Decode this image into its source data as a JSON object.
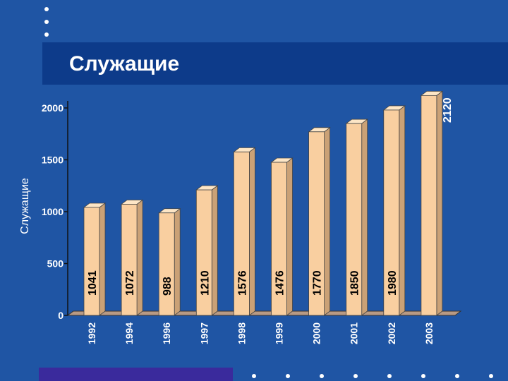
{
  "slide": {
    "title": "Служащие",
    "colors": {
      "background": "#1f55a4",
      "title_band": "#0d3b8a",
      "bar_front": "#f9cfa0",
      "bar_top": "#fde6c6",
      "bar_side": "#caa176",
      "floor": "#b89a84",
      "bottom_bar": "#3a2a9c"
    }
  },
  "chart_data": {
    "type": "bar",
    "title": "Служащие",
    "ylabel": "Служащие",
    "xlabel": "",
    "categories": [
      "1992",
      "1994",
      "1996",
      "1997",
      "1998",
      "1999",
      "2000",
      "2001",
      "2002",
      "2003"
    ],
    "values": [
      1041,
      1072,
      988,
      1210,
      1576,
      1476,
      1770,
      1850,
      1980,
      2120
    ],
    "y_ticks": [
      "0",
      "500",
      "1000",
      "1500",
      "2000"
    ],
    "ylim": [
      0,
      2000
    ],
    "grid": false,
    "legend": "none",
    "style": "3d-column"
  }
}
